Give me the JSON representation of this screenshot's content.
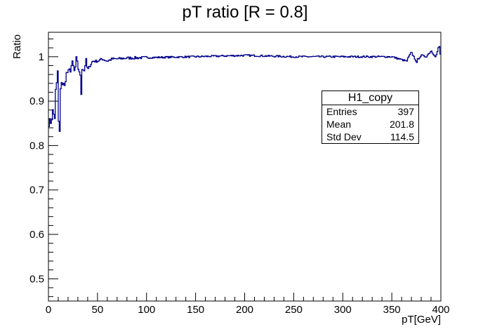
{
  "chart_data": {
    "type": "histogram-line",
    "title": "pT ratio [R = 0.8]",
    "xlabel": "pT[GeV]",
    "ylabel": "Ratio",
    "xlim": [
      0,
      400
    ],
    "ylim": [
      0.45,
      1.055
    ],
    "x_ticks": [
      0,
      50,
      100,
      150,
      200,
      250,
      300,
      350,
      400
    ],
    "y_ticks": [
      0.5,
      0.6,
      0.7,
      0.8,
      0.9,
      1
    ],
    "series_color": "#00008b",
    "bin_width": 1,
    "anchor_points": [
      [
        0,
        0.85
      ],
      [
        1,
        0.86
      ],
      [
        2,
        0.84
      ],
      [
        3,
        0.87
      ],
      [
        4,
        0.86
      ],
      [
        5,
        0.89
      ],
      [
        6,
        0.85
      ],
      [
        7,
        0.88
      ],
      [
        8,
        0.96
      ],
      [
        9,
        0.91
      ],
      [
        10,
        0.87
      ],
      [
        11,
        0.83
      ],
      [
        12,
        0.9
      ],
      [
        13,
        0.94
      ],
      [
        14,
        0.93
      ],
      [
        15,
        0.95
      ],
      [
        16,
        0.92
      ],
      [
        17,
        0.94
      ],
      [
        18,
        0.97
      ],
      [
        19,
        0.95
      ],
      [
        20,
        0.98
      ],
      [
        21,
        0.94
      ],
      [
        22,
        0.99
      ],
      [
        23,
        0.96
      ],
      [
        24,
        0.99
      ],
      [
        25,
        0.97
      ],
      [
        26,
        0.98
      ],
      [
        27,
        0.95
      ],
      [
        28,
        1.0
      ],
      [
        29,
        0.97
      ],
      [
        30,
        0.99
      ],
      [
        31,
        0.96
      ],
      [
        32,
        0.98
      ],
      [
        33,
        0.92
      ],
      [
        34,
        0.97
      ],
      [
        35,
        0.99
      ],
      [
        36,
        0.96
      ],
      [
        37,
        0.98
      ],
      [
        38,
        0.99
      ],
      [
        39,
        0.98
      ],
      [
        40,
        0.97
      ],
      [
        45,
        0.99
      ],
      [
        50,
        0.99
      ],
      [
        55,
        0.995
      ],
      [
        60,
        0.99
      ],
      [
        65,
        0.995
      ],
      [
        70,
        0.995
      ],
      [
        80,
        0.997
      ],
      [
        100,
        0.998
      ],
      [
        150,
        1.0
      ],
      [
        200,
        1.003
      ],
      [
        250,
        1.0
      ],
      [
        300,
        1.0
      ],
      [
        350,
        1.0
      ],
      [
        365,
        0.99
      ],
      [
        370,
        1.01
      ],
      [
        375,
        0.99
      ],
      [
        380,
        1.003
      ],
      [
        385,
        1.0
      ],
      [
        390,
        1.013
      ],
      [
        395,
        1.0
      ],
      [
        398,
        1.023
      ],
      [
        400,
        1.0
      ]
    ],
    "spikes": [
      [
        9,
        0.968
      ],
      [
        11,
        0.832
      ],
      [
        13,
        0.942
      ],
      [
        23,
        0.98
      ],
      [
        28,
        1.0
      ],
      [
        33,
        0.915
      ],
      [
        375,
        0.987
      ],
      [
        390,
        1.013
      ],
      [
        398,
        1.023
      ],
      [
        365,
        0.99
      ]
    ]
  },
  "stats_box": {
    "name": "H1_copy",
    "rows": [
      {
        "label": "Entries",
        "value": "397"
      },
      {
        "label": "Mean",
        "value": "201.8"
      },
      {
        "label": "Std Dev",
        "value": "114.5"
      }
    ]
  }
}
